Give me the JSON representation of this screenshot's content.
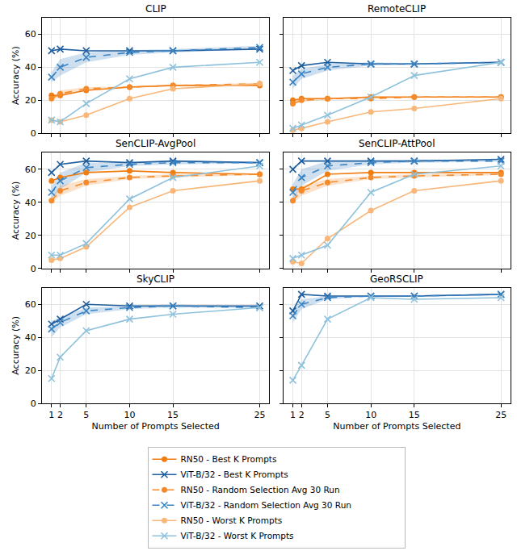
{
  "chart_data": [
    {
      "type": "line",
      "title": "CLIP",
      "x": [
        1,
        2,
        5,
        10,
        15,
        25
      ],
      "xlim": [
        -0.1,
        26.1
      ],
      "xticks": [
        1,
        2,
        5,
        10,
        15,
        25
      ],
      "ylim": [
        0,
        70
      ],
      "yticks": [
        0,
        20,
        40,
        60
      ],
      "grid": true,
      "tick_labels": "y",
      "y_label": "Accuracy (%)",
      "legend": "bottom",
      "series": [
        {
          "name": "RN50 - Best K Prompts",
          "color": "#f07d12",
          "marker": "circle",
          "line_style": "solid",
          "values": [
            23,
            23,
            26,
            28,
            29,
            29
          ]
        },
        {
          "name": "RN50 - Random Selection Avg 30 Run",
          "color": "#f58a2a",
          "marker": "circle",
          "line_style": "dashed",
          "values": [
            21,
            24,
            27,
            28,
            29,
            30
          ],
          "error": [
            1,
            2,
            1,
            0.5,
            0.5,
            0.5
          ]
        },
        {
          "name": "RN50 - Worst K Prompts",
          "color": "#f8b779",
          "marker": "circle",
          "line_style": "solid",
          "values": [
            8,
            7,
            11,
            21,
            27,
            30
          ]
        },
        {
          "name": "ViT-B/32 - Best K Prompts",
          "color": "#1f5f9f",
          "marker": "x",
          "line_style": "solid",
          "values": [
            50,
            51,
            50,
            50,
            50,
            51
          ]
        },
        {
          "name": "ViT-B/32 - Random Selection Avg 30 Run",
          "color": "#3a84c4",
          "marker": "x",
          "line_style": "dashed",
          "values": [
            34,
            40,
            46,
            49,
            50,
            52
          ],
          "error": [
            3,
            5,
            3,
            1.5,
            1,
            1
          ]
        },
        {
          "name": "ViT-B/32 - Worst K Prompts",
          "color": "#8ec2dc",
          "marker": "x",
          "line_style": "solid",
          "values": [
            8,
            7,
            18,
            33,
            40,
            43
          ]
        }
      ]
    },
    {
      "type": "line",
      "title": "RemoteCLIP",
      "x": [
        1,
        2,
        5,
        10,
        15,
        25
      ],
      "xlim": [
        -0.1,
        26.1
      ],
      "xticks": [
        1,
        2,
        5,
        10,
        15,
        25
      ],
      "ylim": [
        0,
        70
      ],
      "yticks": [
        0,
        20,
        40,
        60
      ],
      "grid": true,
      "tick_labels": false,
      "series": [
        {
          "name": "RN50 - Best K Prompts",
          "color": "#f07d12",
          "marker": "circle",
          "line_style": "solid",
          "values": [
            20,
            21,
            21,
            22,
            22,
            22
          ]
        },
        {
          "name": "RN50 - Random Selection Avg 30 Run",
          "color": "#f58a2a",
          "marker": "circle",
          "line_style": "dashed",
          "values": [
            18,
            20,
            21,
            21,
            22,
            22
          ],
          "error": [
            1,
            1,
            0.5,
            0.5,
            0.3,
            0.3
          ]
        },
        {
          "name": "RN50 - Worst K Prompts",
          "color": "#f8b779",
          "marker": "circle",
          "line_style": "solid",
          "values": [
            2,
            3,
            7,
            13,
            15,
            21
          ]
        },
        {
          "name": "ViT-B/32 - Best K Prompts",
          "color": "#1f5f9f",
          "marker": "x",
          "line_style": "solid",
          "values": [
            38,
            41,
            43,
            42,
            42,
            43
          ]
        },
        {
          "name": "ViT-B/32 - Random Selection Avg 30 Run",
          "color": "#3a84c4",
          "marker": "x",
          "line_style": "dashed",
          "values": [
            31,
            36,
            40,
            42,
            42,
            43
          ],
          "error": [
            4,
            3,
            2,
            1,
            0.5,
            0.5
          ]
        },
        {
          "name": "ViT-B/32 - Worst K Prompts",
          "color": "#8ec2dc",
          "marker": "x",
          "line_style": "solid",
          "values": [
            3,
            5,
            11,
            22,
            35,
            43
          ]
        }
      ]
    },
    {
      "type": "line",
      "title": "SenCLIP-AvgPool",
      "x": [
        1,
        2,
        5,
        10,
        15,
        25
      ],
      "xlim": [
        -0.1,
        26.1
      ],
      "xticks": [
        1,
        2,
        5,
        10,
        15,
        25
      ],
      "ylim": [
        0,
        70
      ],
      "yticks": [
        0,
        20,
        40,
        60
      ],
      "grid": true,
      "tick_labels": "y",
      "y_label": "Accuracy (%)",
      "series": [
        {
          "name": "RN50 - Best K Prompts",
          "color": "#f07d12",
          "marker": "circle",
          "line_style": "solid",
          "values": [
            53,
            55,
            58,
            59,
            58,
            57
          ]
        },
        {
          "name": "RN50 - Random Selection Avg 30 Run",
          "color": "#f58a2a",
          "marker": "circle",
          "line_style": "dashed",
          "values": [
            41,
            47,
            52,
            55,
            56,
            57
          ],
          "error": [
            2,
            3,
            2,
            1,
            1,
            0.5
          ]
        },
        {
          "name": "RN50 - Worst K Prompts",
          "color": "#f8b779",
          "marker": "circle",
          "line_style": "solid",
          "values": [
            5,
            6,
            13,
            37,
            47,
            53
          ]
        },
        {
          "name": "ViT-B/32 - Best K Prompts",
          "color": "#1f5f9f",
          "marker": "x",
          "line_style": "solid",
          "values": [
            58,
            63,
            65,
            64,
            65,
            64
          ]
        },
        {
          "name": "ViT-B/32 - Random Selection Avg 30 Run",
          "color": "#3a84c4",
          "marker": "x",
          "line_style": "dashed",
          "values": [
            46,
            53,
            61,
            63,
            64,
            64
          ],
          "error": [
            4,
            5,
            3,
            1,
            1,
            0.5
          ]
        },
        {
          "name": "ViT-B/32 - Worst K Prompts",
          "color": "#8ec2dc",
          "marker": "x",
          "line_style": "solid",
          "values": [
            8,
            8,
            15,
            42,
            55,
            62
          ]
        }
      ]
    },
    {
      "type": "line",
      "title": "SenCLIP-AttPool",
      "x": [
        1,
        2,
        5,
        10,
        15,
        25
      ],
      "xlim": [
        -0.1,
        26.1
      ],
      "xticks": [
        1,
        2,
        5,
        10,
        15,
        25
      ],
      "ylim": [
        0,
        70
      ],
      "yticks": [
        0,
        20,
        40,
        60
      ],
      "grid": true,
      "tick_labels": false,
      "series": [
        {
          "name": "RN50 - Best K Prompts",
          "color": "#f07d12",
          "marker": "circle",
          "line_style": "solid",
          "values": [
            48,
            48,
            57,
            58,
            58,
            58
          ]
        },
        {
          "name": "RN50 - Random Selection Avg 30 Run",
          "color": "#f58a2a",
          "marker": "circle",
          "line_style": "dashed",
          "values": [
            41,
            47,
            52,
            55,
            56,
            57
          ],
          "error": [
            2,
            3,
            2,
            1,
            1,
            0.5
          ]
        },
        {
          "name": "RN50 - Worst K Prompts",
          "color": "#f8b779",
          "marker": "circle",
          "line_style": "solid",
          "values": [
            4,
            3,
            18,
            35,
            47,
            53
          ]
        },
        {
          "name": "ViT-B/32 - Best K Prompts",
          "color": "#1f5f9f",
          "marker": "x",
          "line_style": "solid",
          "values": [
            60,
            65,
            65,
            65,
            65,
            66
          ]
        },
        {
          "name": "ViT-B/32 - Random Selection Avg 30 Run",
          "color": "#3a84c4",
          "marker": "x",
          "line_style": "dashed",
          "values": [
            46,
            55,
            62,
            64,
            65,
            65
          ],
          "error": [
            5,
            5,
            3,
            1,
            1,
            0.5
          ]
        },
        {
          "name": "ViT-B/32 - Worst K Prompts",
          "color": "#8ec2dc",
          "marker": "x",
          "line_style": "solid",
          "values": [
            6,
            8,
            14,
            46,
            57,
            62
          ]
        }
      ]
    },
    {
      "type": "line",
      "title": "SkyCLIP",
      "x": [
        1,
        2,
        5,
        10,
        15,
        25
      ],
      "xlim": [
        -0.1,
        26.1
      ],
      "xticks": [
        1,
        2,
        5,
        10,
        15,
        25
      ],
      "ylim": [
        0,
        70
      ],
      "yticks": [
        0,
        20,
        40,
        60
      ],
      "grid": true,
      "tick_labels": true,
      "y_label": "Accuracy (%)",
      "x_label": "Number of Prompts Selected",
      "series": [
        {
          "name": "ViT-B/32 - Best K Prompts",
          "color": "#1f5f9f",
          "marker": "x",
          "line_style": "solid",
          "values": [
            48,
            51,
            60,
            59,
            59,
            59
          ]
        },
        {
          "name": "ViT-B/32 - Random Selection Avg 30 Run",
          "color": "#3a84c4",
          "marker": "x",
          "line_style": "dashed",
          "values": [
            45,
            49,
            56,
            58,
            59,
            58
          ],
          "error": [
            5,
            3,
            2,
            1,
            1,
            0.5
          ]
        },
        {
          "name": "ViT-B/32 - Worst K Prompts",
          "color": "#8ec2dc",
          "marker": "x",
          "line_style": "solid",
          "values": [
            15,
            28,
            44,
            51,
            54,
            58
          ]
        }
      ]
    },
    {
      "type": "line",
      "title": "GeoRSCLIP",
      "x": [
        1,
        2,
        5,
        10,
        15,
        25
      ],
      "xlim": [
        -0.1,
        26.1
      ],
      "xticks": [
        1,
        2,
        5,
        10,
        15,
        25
      ],
      "ylim": [
        0,
        70
      ],
      "yticks": [
        0,
        20,
        40,
        60
      ],
      "grid": true,
      "tick_labels": "x",
      "x_label": "Number of Prompts Selected",
      "series": [
        {
          "name": "ViT-B/32 - Best K Prompts",
          "color": "#1f5f9f",
          "marker": "x",
          "line_style": "solid",
          "values": [
            56,
            66,
            65,
            65,
            65,
            66
          ]
        },
        {
          "name": "ViT-B/32 - Random Selection Avg 30 Run",
          "color": "#3a84c4",
          "marker": "x",
          "line_style": "dashed",
          "values": [
            53,
            60,
            64,
            65,
            65,
            66
          ],
          "error": [
            4,
            3,
            1,
            0.5,
            0.5,
            0.5
          ]
        },
        {
          "name": "ViT-B/32 - Worst K Prompts",
          "color": "#8ec2dc",
          "marker": "x",
          "line_style": "solid",
          "values": [
            14,
            23,
            51,
            64,
            63,
            64
          ]
        }
      ]
    }
  ]
}
